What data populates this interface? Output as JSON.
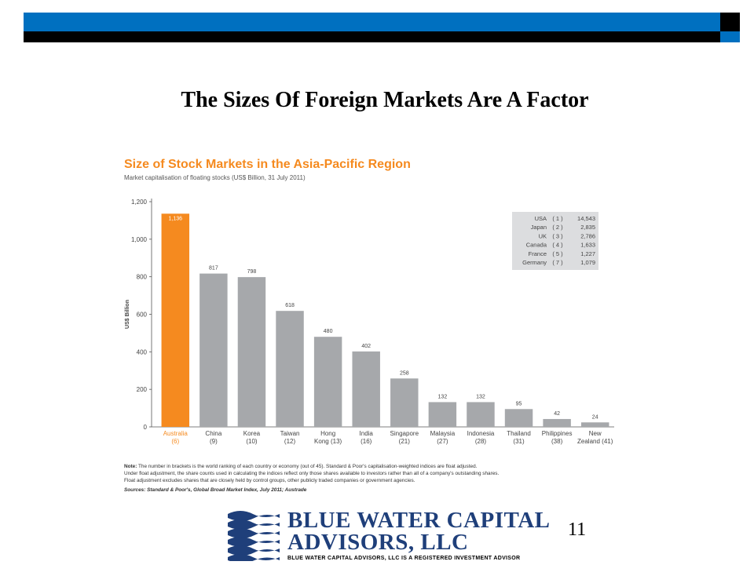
{
  "slide": {
    "title": "The Sizes Of Foreign Markets Are A Factor",
    "page_number": "11"
  },
  "logo": {
    "line1": "BLUE WATER CAPITAL",
    "line2": "ADVISORS, LLC",
    "tagline": "BLUE WATER CAPITAL ADVISORS, LLC IS A REGISTERED INVESTMENT ADVISOR"
  },
  "colors": {
    "top_bar_blue": "#0070c0",
    "highlight_bar": "#f58a1f",
    "bar": "#a6a8ab",
    "heading": "#f58a1f",
    "logo_blue": "#1f3f7a"
  },
  "chart_data": {
    "type": "bar",
    "title": "Size of Stock Markets in the Asia-Pacific Region",
    "subtitle": "Market capitalisation of floating stocks (US$ Billion, 31 July 2011)",
    "ylabel": "US$ Billion",
    "ylim": [
      0,
      1200
    ],
    "yticks": [
      0,
      200,
      400,
      600,
      800,
      "1,000",
      "1,200"
    ],
    "categories": [
      {
        "name": "Australia",
        "rank": "(6)"
      },
      {
        "name": "China",
        "rank": "(9)"
      },
      {
        "name": "Korea",
        "rank": "(10)"
      },
      {
        "name": "Taiwan",
        "rank": "(12)"
      },
      {
        "name": "Hong",
        "rank": "Kong (13)"
      },
      {
        "name": "India",
        "rank": "(16)"
      },
      {
        "name": "Singapore",
        "rank": "(21)"
      },
      {
        "name": "Malaysia",
        "rank": "(27)"
      },
      {
        "name": "Indonesia",
        "rank": "(28)"
      },
      {
        "name": "Thailand",
        "rank": "(31)"
      },
      {
        "name": "Philippines",
        "rank": "(38)"
      },
      {
        "name": "New",
        "rank": "Zealand (41)"
      }
    ],
    "values": [
      1136,
      817,
      798,
      618,
      480,
      402,
      258,
      132,
      132,
      95,
      42,
      24
    ],
    "value_labels": [
      "1,136",
      "817",
      "798",
      "618",
      "480",
      "402",
      "258",
      "132",
      "132",
      "95",
      "42",
      "24"
    ],
    "highlight_index": 0,
    "inset_table": [
      {
        "country": "USA",
        "rank": "( 1 )",
        "value": "14,543"
      },
      {
        "country": "Japan",
        "rank": "( 2 )",
        "value": "2,835"
      },
      {
        "country": "UK",
        "rank": "( 3 )",
        "value": "2,786"
      },
      {
        "country": "Canada",
        "rank": "( 4 )",
        "value": "1,633"
      },
      {
        "country": "France",
        "rank": "( 5 )",
        "value": "1,227"
      },
      {
        "country": "Germany",
        "rank": "( 7 )",
        "value": "1,079"
      }
    ],
    "note_label": "Note:",
    "note_lines": [
      " The number in brackets is the world ranking of each country or economy (out of 45). Standard & Poor's capitalisation-weighted indices are float adjusted.",
      "Under float adjustment, the share counts used in calculating the indices reflect only those shares available to investors rather than all of a company's outstanding shares.",
      "Float adjustment excludes shares that are closely held by control groups, other publicly traded companies or government agencies."
    ],
    "sources": "Sources: Standard & Poor's, Global Broad Market Index, July 2011; Austrade"
  }
}
